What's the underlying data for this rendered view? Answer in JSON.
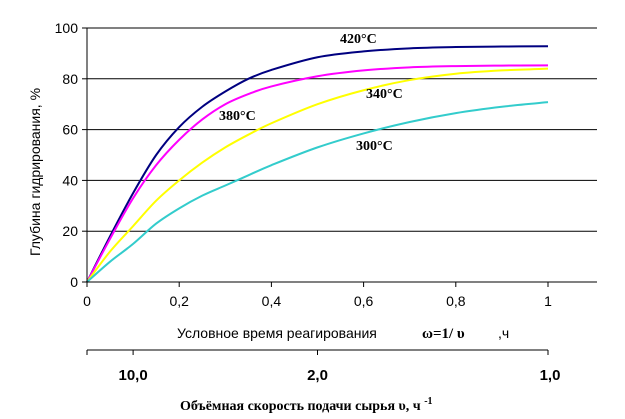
{
  "chart_data": {
    "type": "line",
    "ylabel": "Глубина гидрирования, %",
    "xlabel": "Условное время реагирования",
    "xlabel_formula": "ω=1/ υ",
    "xlabel_unit": ",ч",
    "xlim": [
      0,
      1
    ],
    "ylim": [
      0,
      100
    ],
    "grid": true,
    "x_ticks": [
      "0",
      "0,2",
      "0,4",
      "0,6",
      "0,8",
      "1"
    ],
    "x_tick_values": [
      0,
      0.2,
      0.4,
      0.6,
      0.8,
      1.0
    ],
    "y_ticks": [
      "0",
      "20",
      "40",
      "60",
      "80",
      "100"
    ],
    "y_tick_values": [
      0,
      20,
      40,
      60,
      80,
      100
    ],
    "series": [
      {
        "name": "420°C",
        "color": "#000080",
        "x": [
          0,
          0.05,
          0.1,
          0.15,
          0.2,
          0.25,
          0.3,
          0.35,
          0.4,
          0.5,
          0.6,
          0.7,
          0.8,
          0.9,
          1.0
        ],
        "y": [
          0,
          18,
          35,
          50,
          61,
          69,
          75,
          80,
          83.5,
          88.5,
          90.8,
          92,
          92.5,
          92.7,
          92.8
        ]
      },
      {
        "name": "380°C",
        "color": "#ff00ff",
        "x": [
          0,
          0.05,
          0.1,
          0.15,
          0.2,
          0.25,
          0.3,
          0.35,
          0.4,
          0.5,
          0.6,
          0.7,
          0.8,
          0.9,
          1.0
        ],
        "y": [
          0,
          17,
          33,
          46,
          56,
          64,
          70,
          74,
          77,
          81,
          83.3,
          84.5,
          85,
          85.2,
          85.3
        ]
      },
      {
        "name": "340°C",
        "color": "#ffff00",
        "x": [
          0,
          0.05,
          0.1,
          0.15,
          0.2,
          0.25,
          0.3,
          0.35,
          0.4,
          0.5,
          0.6,
          0.7,
          0.8,
          0.9,
          1.0
        ],
        "y": [
          0,
          12,
          22,
          32,
          40,
          47,
          53,
          58,
          62.5,
          70,
          75.5,
          79.5,
          82,
          83.3,
          84
        ]
      },
      {
        "name": "300°C",
        "color": "#33cccc",
        "x": [
          0,
          0.05,
          0.1,
          0.15,
          0.2,
          0.25,
          0.3,
          0.35,
          0.4,
          0.5,
          0.6,
          0.7,
          0.8,
          0.9,
          1.0
        ],
        "y": [
          0,
          8,
          15,
          23,
          29,
          34,
          38,
          42,
          46,
          53,
          58.5,
          63,
          66.5,
          69,
          70.8
        ]
      }
    ],
    "annotations": [
      "420°C",
      "380°C",
      "340°C",
      "300°C"
    ],
    "secondary_axis": {
      "label": "Объёмная скорость подачи сырья υ, ч",
      "label_superscript": "-1",
      "ticks": [
        "10,0",
        "2,0",
        "1,0"
      ],
      "tick_positions": [
        0.1,
        0.5,
        1.0
      ]
    }
  }
}
